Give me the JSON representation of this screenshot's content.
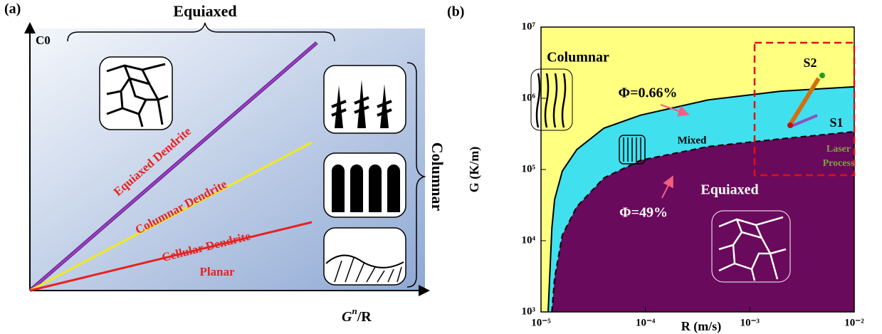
{
  "panel_a": {
    "label": "(a)",
    "y_label": "C0",
    "x_label_main": "G",
    "x_label_sup": "n",
    "x_label_rest": "/R",
    "top_brace_label": "Equiaxed",
    "side_brace_label": "Columnar",
    "lines": [
      {
        "name": "Equiaxed Dendrite",
        "color": "#9b3fc4"
      },
      {
        "name": "Columnar Dendrite",
        "color": "#f2e81e"
      },
      {
        "name": "Cellular Dendrite",
        "color": "#e8211f"
      },
      {
        "name": "Planar",
        "color": "#e8211f"
      }
    ]
  },
  "chart_data": {
    "type": "area",
    "label": "(b)",
    "xlabel": "R (m/s)",
    "ylabel": "G (K/m)",
    "log_x": true,
    "log_y": true,
    "xlim": [
      1e-05,
      0.01
    ],
    "ylim": [
      1000,
      10000000
    ],
    "xticks": [
      {
        "value": 1e-05,
        "label": "10⁻⁵"
      },
      {
        "value": 0.0001,
        "label": "10⁻⁴"
      },
      {
        "value": 0.001,
        "label": "10⁻³"
      },
      {
        "value": 0.01,
        "label": "10⁻²"
      }
    ],
    "yticks": [
      {
        "value": 1000,
        "label": "10³"
      },
      {
        "value": 10000,
        "label": "10⁴"
      },
      {
        "value": 100000,
        "label": "10⁵"
      },
      {
        "value": 1000000,
        "label": "10⁶"
      },
      {
        "value": 10000000,
        "label": "10⁷"
      }
    ],
    "background_color": "#ffff80",
    "x": [
      1.17e-05,
      1.27e-05,
      1.35e-05,
      1.6e-05,
      2.2e-05,
      4e-05,
      9e-05,
      0.0004,
      0.002,
      0.01
    ],
    "series": [
      {
        "name": "Φ=0.66%",
        "color": "#40e0ee",
        "line_style": "solid",
        "values": [
          1000,
          15000,
          38000,
          95000,
          190000,
          380000,
          580000,
          950000,
          1260000,
          1450000
        ]
      },
      {
        "name": "Φ=49%",
        "color": "#6a0a5c",
        "line_style": "dashed",
        "values": [
          null,
          1000,
          3000,
          12000,
          30000,
          76000,
          135000,
          210000,
          270000,
          340000
        ]
      }
    ],
    "annotations": [
      "Columnar",
      "Mixed",
      "Equiaxed",
      "S1",
      "S2",
      "Laser",
      "Process"
    ]
  }
}
